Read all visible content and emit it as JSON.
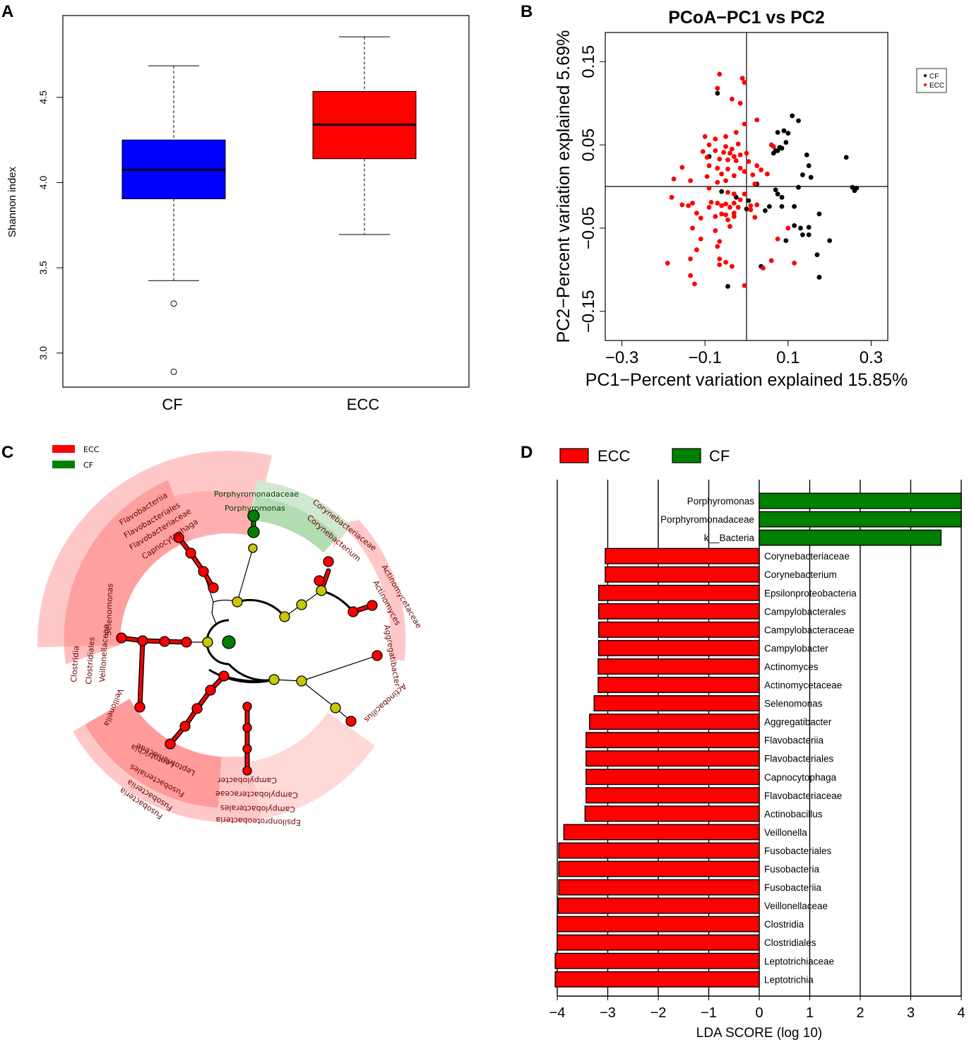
{
  "panel_labels": [
    "A",
    "B",
    "C",
    "D"
  ],
  "chart_data": [
    {
      "panel": "A",
      "type": "boxplot",
      "ylabel": "Shannon index",
      "ylim": [
        2.8,
        4.98
      ],
      "yticks": [
        "3.0",
        "3.5",
        "4.0",
        "4.5"
      ],
      "categories": [
        "CF",
        "ECC"
      ],
      "boxes": [
        {
          "name": "CF",
          "color": "#0000ff",
          "q1": 3.905,
          "median": 4.075,
          "q3": 4.25,
          "whisker_low": 3.425,
          "whisker_high": 4.685,
          "outliers": [
            3.29,
            2.89
          ]
        },
        {
          "name": "ECC",
          "color": "#ff0000",
          "q1": 4.14,
          "median": 4.34,
          "q3": 4.535,
          "whisker_low": 3.695,
          "whisker_high": 4.855,
          "outliers": []
        }
      ]
    },
    {
      "panel": "B",
      "type": "scatter",
      "title": "PCoA−PC1 vs PC2",
      "xlabel": "PC1−Percent variation explained 15.85%",
      "ylabel": "PC2−Percent variation explained 5.69%",
      "xlim": [
        -0.34,
        0.34
      ],
      "ylim": [
        -0.185,
        0.185
      ],
      "xticks": [
        "−0.3",
        "−0.1",
        "0.1",
        "0.3"
      ],
      "yticks": [
        "0.15",
        "0.05",
        "−0.05",
        "−0.15"
      ],
      "legend": [
        {
          "label": "CF",
          "color": "#000000"
        },
        {
          "label": "ECC",
          "color": "#ff0000"
        }
      ],
      "series": [
        {
          "name": "CF",
          "color": "#000000",
          "points": [
            [
              -0.07,
              0.112
            ],
            [
              0.11,
              0.085
            ],
            [
              0.125,
              0.079
            ],
            [
              0.09,
              0.067
            ],
            [
              0.075,
              0.065
            ],
            [
              0.1,
              0.064
            ],
            [
              0.095,
              0.053
            ],
            [
              0.08,
              0.047
            ],
            [
              0.085,
              0.046
            ],
            [
              0.07,
              0.043
            ],
            [
              0.075,
              0.043
            ],
            [
              0.065,
              0.04
            ],
            [
              -0.09,
              0.036
            ],
            [
              0.145,
              0.038
            ],
            [
              0.24,
              0.035
            ],
            [
              0.15,
              0.025
            ],
            [
              0.135,
              0.014
            ],
            [
              0.155,
              0.011
            ],
            [
              0.025,
              0.003
            ],
            [
              0.125,
              -0.001
            ],
            [
              0.255,
              -0.001
            ],
            [
              0.265,
              -0.002
            ],
            [
              0.26,
              -0.005
            ],
            [
              0.07,
              -0.004
            ],
            [
              0.075,
              -0.009
            ],
            [
              -0.06,
              -0.006
            ],
            [
              -0.025,
              -0.013
            ],
            [
              -0.03,
              -0.009
            ],
            [
              0.005,
              -0.017
            ],
            [
              0.085,
              -0.013
            ],
            [
              0.085,
              -0.024
            ],
            [
              0.115,
              -0.024
            ],
            [
              0.055,
              -0.024
            ],
            [
              0.0,
              -0.027
            ],
            [
              0.045,
              -0.029
            ],
            [
              0.175,
              -0.033
            ],
            [
              0.115,
              -0.047
            ],
            [
              0.13,
              -0.05
            ],
            [
              0.15,
              -0.049
            ],
            [
              0.15,
              -0.058
            ],
            [
              0.135,
              -0.058
            ],
            [
              0.095,
              -0.065
            ],
            [
              0.2,
              -0.065
            ],
            [
              0.17,
              -0.082
            ],
            [
              0.035,
              -0.096
            ],
            [
              0.175,
              -0.109
            ],
            [
              -0.045,
              -0.12
            ]
          ]
        },
        {
          "name": "ECC",
          "color": "#ff0000",
          "points": [
            [
              -0.065,
              0.135
            ],
            [
              -0.01,
              0.13
            ],
            [
              -0.005,
              0.125
            ],
            [
              -0.07,
              0.118
            ],
            [
              -0.035,
              0.105
            ],
            [
              -0.015,
              0.1
            ],
            [
              -0.005,
              0.075
            ],
            [
              0.025,
              0.08
            ],
            [
              -0.025,
              0.065
            ],
            [
              -0.05,
              0.06
            ],
            [
              -0.1,
              0.06
            ],
            [
              -0.09,
              0.05
            ],
            [
              -0.075,
              0.057
            ],
            [
              -0.05,
              0.048
            ],
            [
              -0.035,
              0.045
            ],
            [
              -0.02,
              0.051
            ],
            [
              -0.105,
              0.042
            ],
            [
              -0.075,
              0.043
            ],
            [
              -0.055,
              0.041
            ],
            [
              -0.04,
              0.04
            ],
            [
              -0.03,
              0.036
            ],
            [
              -0.015,
              0.038
            ],
            [
              0.0,
              0.04
            ],
            [
              -0.095,
              0.035
            ],
            [
              -0.065,
              0.033
            ],
            [
              -0.045,
              0.032
            ],
            [
              -0.025,
              0.031
            ],
            [
              0.005,
              0.03
            ],
            [
              0.025,
              0.025
            ],
            [
              -0.09,
              0.025
            ],
            [
              -0.07,
              0.022
            ],
            [
              -0.045,
              0.021
            ],
            [
              -0.015,
              0.022
            ],
            [
              -0.005,
              0.018
            ],
            [
              0.015,
              0.014
            ],
            [
              0.035,
              0.02
            ],
            [
              0.06,
              0.05
            ],
            [
              0.065,
              0.048
            ],
            [
              -0.155,
              0.023
            ],
            [
              -0.095,
              0.012
            ],
            [
              -0.06,
              0.015
            ],
            [
              -0.03,
              0.013
            ],
            [
              -0.05,
              0.007
            ],
            [
              0.02,
              0.003
            ],
            [
              0.05,
              0.015
            ],
            [
              -0.175,
              0.009
            ],
            [
              -0.135,
              0.007
            ],
            [
              -0.07,
              0.005
            ],
            [
              -0.09,
              -0.002
            ],
            [
              -0.045,
              -0.007
            ],
            [
              -0.03,
              -0.009
            ],
            [
              -0.005,
              -0.009
            ],
            [
              -0.18,
              -0.013
            ],
            [
              -0.085,
              -0.019
            ],
            [
              -0.07,
              -0.02
            ],
            [
              -0.05,
              -0.021
            ],
            [
              -0.03,
              -0.02
            ],
            [
              -0.015,
              -0.016
            ],
            [
              0.01,
              -0.023
            ],
            [
              0.025,
              -0.022
            ],
            [
              -0.155,
              -0.022
            ],
            [
              -0.14,
              -0.023
            ],
            [
              -0.13,
              -0.02
            ],
            [
              -0.09,
              -0.025
            ],
            [
              -0.06,
              -0.023
            ],
            [
              -0.04,
              -0.025
            ],
            [
              -0.02,
              -0.025
            ],
            [
              0.01,
              -0.028
            ],
            [
              -0.12,
              -0.032
            ],
            [
              -0.03,
              -0.032
            ],
            [
              -0.06,
              -0.033
            ],
            [
              -0.045,
              -0.04
            ],
            [
              -0.03,
              -0.036
            ],
            [
              0.02,
              -0.037
            ],
            [
              -0.11,
              -0.038
            ],
            [
              -0.075,
              -0.036
            ],
            [
              -0.05,
              -0.034
            ],
            [
              -0.13,
              -0.05
            ],
            [
              -0.075,
              -0.053
            ],
            [
              -0.04,
              -0.048
            ],
            [
              -0.11,
              -0.063
            ],
            [
              -0.065,
              -0.066
            ],
            [
              -0.07,
              -0.072
            ],
            [
              -0.065,
              -0.087
            ],
            [
              -0.065,
              -0.094
            ],
            [
              -0.05,
              -0.091
            ],
            [
              -0.035,
              -0.096
            ],
            [
              -0.135,
              -0.087
            ],
            [
              -0.12,
              -0.076
            ],
            [
              -0.19,
              -0.092
            ],
            [
              0.075,
              -0.063
            ],
            [
              0.1,
              -0.05
            ],
            [
              0.06,
              -0.089
            ],
            [
              0.115,
              -0.092
            ],
            [
              0.04,
              -0.098
            ],
            [
              -0.135,
              -0.107
            ],
            [
              -0.125,
              -0.117
            ],
            [
              -0.005,
              -0.119
            ]
          ]
        }
      ]
    },
    {
      "panel": "C",
      "type": "cladogram",
      "legend": [
        {
          "label": "ECC",
          "color": "#ff0000"
        },
        {
          "label": "CF",
          "color": "#008000"
        }
      ],
      "labels": [
        {
          "text": "Porphyromonadaceae",
          "color": "green"
        },
        {
          "text": "Porphyromonas",
          "color": "green"
        },
        {
          "text": "Corynebacteriaceae",
          "color": "red"
        },
        {
          "text": "Corynebacterium",
          "color": "red"
        },
        {
          "text": "Actinomycetaceae",
          "color": "red"
        },
        {
          "text": "Actinomyces",
          "color": "red"
        },
        {
          "text": "Aggregatibacter",
          "color": "red"
        },
        {
          "text": "Actinobacillus",
          "color": "red"
        },
        {
          "text": "Flavobacteriia",
          "color": "red"
        },
        {
          "text": "Flavobacteriales",
          "color": "red"
        },
        {
          "text": "Flavobacteriaceae",
          "color": "red"
        },
        {
          "text": "Capnocytophaga",
          "color": "red"
        },
        {
          "text": "Selenomonas",
          "color": "red"
        },
        {
          "text": "Veillonellaceae",
          "color": "red"
        },
        {
          "text": "Clostridiales",
          "color": "red"
        },
        {
          "text": "Clostridia",
          "color": "red"
        },
        {
          "text": "Veillonella",
          "color": "red"
        },
        {
          "text": "Leptotrichia",
          "color": "red"
        },
        {
          "text": "Leptotrichiaceae",
          "color": "red"
        },
        {
          "text": "Fusobacteriales",
          "color": "red"
        },
        {
          "text": "Fusobacteriia",
          "color": "red"
        },
        {
          "text": "Fusobacteria",
          "color": "red"
        },
        {
          "text": "Campylobacter",
          "color": "red"
        },
        {
          "text": "Campylobacteraceae",
          "color": "red"
        },
        {
          "text": "Campylobacterales",
          "color": "red"
        },
        {
          "text": "Epsilonproteobacteria",
          "color": "red"
        }
      ]
    },
    {
      "panel": "D",
      "type": "bar",
      "orientation": "horizontal",
      "xlabel": "LDA SCORE (log 10)",
      "xlim": [
        -4.05,
        4.05
      ],
      "xticks": [
        -4,
        -3,
        -2,
        -1,
        0,
        1,
        2,
        3,
        4
      ],
      "xtick_labels": [
        "−4",
        "−3",
        "−2",
        "−1",
        "0",
        "1",
        "2",
        "3",
        "4"
      ],
      "legend": [
        {
          "label": "ECC",
          "color": "#ff0000"
        },
        {
          "label": "CF",
          "color": "#008000"
        }
      ],
      "bars": [
        {
          "name": "Porphyromonas",
          "value": 4.0,
          "group": "CF"
        },
        {
          "name": "Porphyromonadaceae",
          "value": 4.0,
          "group": "CF"
        },
        {
          "name": "k__Bacteria",
          "value": 3.6,
          "group": "CF"
        },
        {
          "name": "Corynebacteriaceae",
          "value": -3.05,
          "group": "ECC"
        },
        {
          "name": "Corynebacterium",
          "value": -3.05,
          "group": "ECC"
        },
        {
          "name": "Epsilonproteobacteria",
          "value": -3.18,
          "group": "ECC"
        },
        {
          "name": "Campylobacterales",
          "value": -3.18,
          "group": "ECC"
        },
        {
          "name": "Campylobacteraceae",
          "value": -3.18,
          "group": "ECC"
        },
        {
          "name": "Campylobacter",
          "value": -3.18,
          "group": "ECC"
        },
        {
          "name": "Actinomyces",
          "value": -3.19,
          "group": "ECC"
        },
        {
          "name": "Actinomycetaceae",
          "value": -3.19,
          "group": "ECC"
        },
        {
          "name": "Selenomonas",
          "value": -3.27,
          "group": "ECC"
        },
        {
          "name": "Aggregatibacter",
          "value": -3.36,
          "group": "ECC"
        },
        {
          "name": "Flavobacteriia",
          "value": -3.43,
          "group": "ECC"
        },
        {
          "name": "Flavobacteriales",
          "value": -3.43,
          "group": "ECC"
        },
        {
          "name": "Capnocytophaga",
          "value": -3.43,
          "group": "ECC"
        },
        {
          "name": "Flavobacteriaceae",
          "value": -3.43,
          "group": "ECC"
        },
        {
          "name": "Actinobacillus",
          "value": -3.45,
          "group": "ECC"
        },
        {
          "name": "Veillonella",
          "value": -3.87,
          "group": "ECC"
        },
        {
          "name": "Fusobacteriales",
          "value": -3.97,
          "group": "ECC"
        },
        {
          "name": "Fusobacteria",
          "value": -3.97,
          "group": "ECC"
        },
        {
          "name": "Fusobacteriia",
          "value": -3.97,
          "group": "ECC"
        },
        {
          "name": "Veillonellaceae",
          "value": -3.98,
          "group": "ECC"
        },
        {
          "name": "Clostridia",
          "value": -4.0,
          "group": "ECC"
        },
        {
          "name": "Clostridiales",
          "value": -4.0,
          "group": "ECC"
        },
        {
          "name": "Leptotrichiaceae",
          "value": -4.04,
          "group": "ECC"
        },
        {
          "name": "Leptotrichia",
          "value": -4.04,
          "group": "ECC"
        }
      ]
    }
  ]
}
